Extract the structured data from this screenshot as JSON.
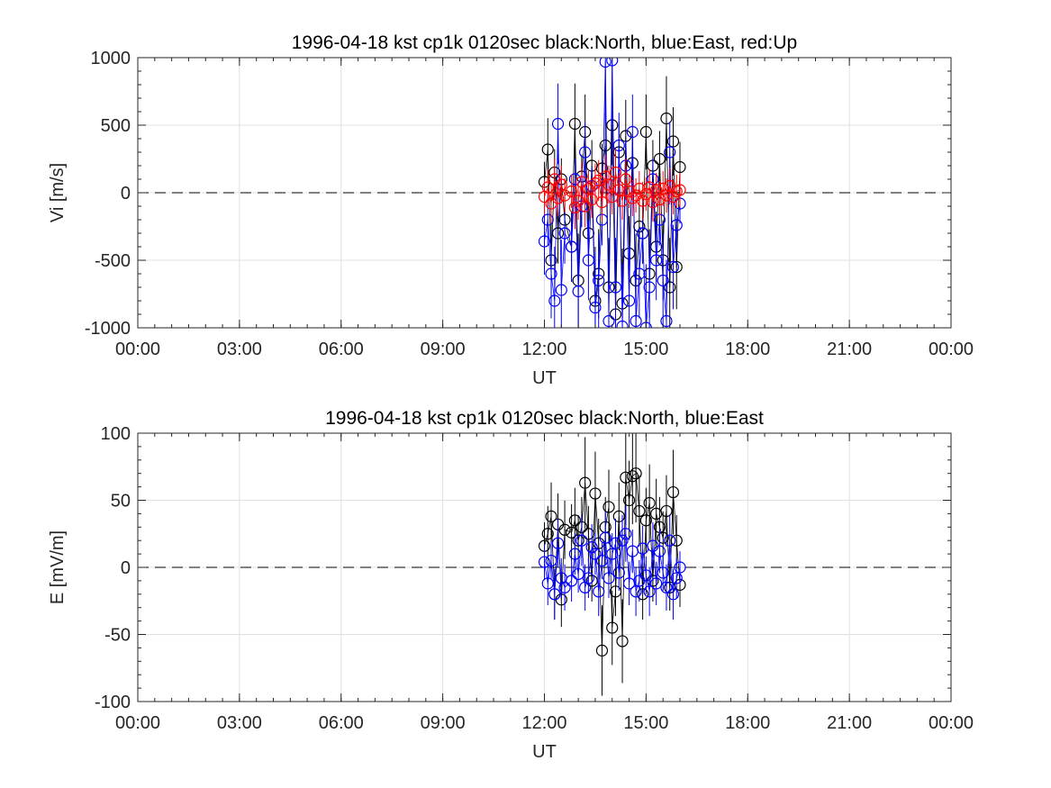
{
  "chart_data": [
    {
      "type": "scatter",
      "title": "1996-04-18 kst cp1k 0120sec black:North, blue:East, red:Up",
      "xlabel": "UT",
      "ylabel": "Vi [m/s]",
      "xlim": [
        0,
        24
      ],
      "ylim": [
        -1000,
        1000
      ],
      "xticks": [
        0,
        3,
        6,
        9,
        12,
        15,
        18,
        21,
        24
      ],
      "xticklabels": [
        "00:00",
        "03:00",
        "06:00",
        "09:00",
        "12:00",
        "15:00",
        "18:00",
        "21:00",
        "00:00"
      ],
      "yticks": [
        -1000,
        -500,
        0,
        500,
        1000
      ],
      "yticklabels": [
        "-1000",
        "-500",
        "0",
        "500",
        "1000"
      ],
      "grid": true,
      "zero_line": "dashed",
      "series": [
        {
          "name": "North",
          "color": "#000000",
          "marker": "circle",
          "errorbars": true,
          "x": [
            12.0,
            12.1,
            12.2,
            12.3,
            12.4,
            12.5,
            12.6,
            12.8,
            12.9,
            13.0,
            13.1,
            13.2,
            13.3,
            13.4,
            13.5,
            13.6,
            13.7,
            13.8,
            13.9,
            14.0,
            14.1,
            14.2,
            14.3,
            14.4,
            14.5,
            14.6,
            14.7,
            14.8,
            14.9,
            15.0,
            15.1,
            15.2,
            15.3,
            15.4,
            15.5,
            15.6,
            15.7,
            15.8,
            15.9,
            16.0
          ],
          "y": [
            80,
            320,
            -500,
            150,
            -300,
            100,
            -200,
            -400,
            510,
            -650,
            120,
            450,
            -300,
            200,
            -800,
            -600,
            180,
            350,
            -700,
            500,
            -900,
            300,
            -820,
            420,
            -450,
            220,
            -650,
            -250,
            -300,
            450,
            -600,
            200,
            -400,
            250,
            -500,
            550,
            -700,
            380,
            -550,
            190
          ]
        },
        {
          "name": "East",
          "color": "#0000ff",
          "marker": "circle",
          "errorbars": true,
          "x": [
            12.0,
            12.1,
            12.2,
            12.3,
            12.4,
            12.5,
            12.6,
            12.8,
            12.9,
            13.0,
            13.1,
            13.2,
            13.3,
            13.4,
            13.5,
            13.6,
            13.7,
            13.8,
            13.9,
            14.0,
            14.1,
            14.2,
            14.3,
            14.4,
            14.5,
            14.6,
            14.7,
            14.8,
            14.9,
            15.0,
            15.1,
            15.2,
            15.3,
            15.4,
            15.5,
            15.6,
            15.7,
            15.8,
            15.9,
            16.0
          ],
          "y": [
            -360,
            -200,
            -600,
            -800,
            510,
            -720,
            -300,
            -400,
            100,
            -730,
            -100,
            300,
            -500,
            50,
            -850,
            -650,
            -200,
            970,
            -950,
            980,
            -700,
            350,
            -990,
            200,
            -800,
            450,
            -950,
            -600,
            -300,
            -1000,
            -700,
            100,
            -500,
            -200,
            -650,
            -950,
            300,
            -550,
            -240,
            -80
          ]
        },
        {
          "name": "Up",
          "color": "#ff0000",
          "marker": "circle",
          "errorbars": true,
          "x": [
            12.0,
            12.1,
            12.2,
            12.3,
            12.4,
            12.5,
            12.6,
            12.8,
            12.9,
            13.0,
            13.1,
            13.2,
            13.3,
            13.4,
            13.5,
            13.6,
            13.7,
            13.8,
            13.9,
            14.0,
            14.1,
            14.2,
            14.3,
            14.4,
            14.5,
            14.6,
            14.7,
            14.8,
            14.9,
            15.0,
            15.1,
            15.2,
            15.3,
            15.4,
            15.5,
            15.6,
            15.7,
            15.8,
            15.9,
            16.0
          ],
          "y": [
            -30,
            40,
            -80,
            100,
            -40,
            60,
            -20,
            10,
            -110,
            -60,
            80,
            -100,
            30,
            -50,
            70,
            90,
            -70,
            120,
            60,
            -30,
            150,
            20,
            -60,
            100,
            10,
            -40,
            -20,
            30,
            -60,
            -10,
            40,
            -70,
            20,
            -50,
            30,
            -20,
            50,
            -30,
            10,
            20
          ]
        }
      ]
    },
    {
      "type": "scatter",
      "title": "1996-04-18 kst cp1k 0120sec black:North, blue:East",
      "xlabel": "UT",
      "ylabel": "E [mV/m]",
      "xlim": [
        0,
        24
      ],
      "ylim": [
        -100,
        100
      ],
      "xticks": [
        0,
        3,
        6,
        9,
        12,
        15,
        18,
        21,
        24
      ],
      "xticklabels": [
        "00:00",
        "03:00",
        "06:00",
        "09:00",
        "12:00",
        "15:00",
        "18:00",
        "21:00",
        "00:00"
      ],
      "yticks": [
        -100,
        -50,
        0,
        50,
        100
      ],
      "yticklabels": [
        "-100",
        "-50",
        "0",
        "50",
        "100"
      ],
      "grid": true,
      "zero_line": "dashed",
      "series": [
        {
          "name": "North",
          "color": "#000000",
          "marker": "circle",
          "errorbars": true,
          "x": [
            12.0,
            12.1,
            12.2,
            12.3,
            12.4,
            12.5,
            12.6,
            12.8,
            12.9,
            13.0,
            13.1,
            13.2,
            13.3,
            13.4,
            13.5,
            13.6,
            13.7,
            13.8,
            13.9,
            14.0,
            14.1,
            14.2,
            14.3,
            14.4,
            14.5,
            14.6,
            14.7,
            14.8,
            14.9,
            15.0,
            15.1,
            15.2,
            15.3,
            15.4,
            15.5,
            15.6,
            15.7,
            15.8,
            15.9,
            16.0
          ],
          "y": [
            16,
            25,
            38,
            -20,
            32,
            -24,
            28,
            26,
            35,
            20,
            30,
            63,
            25,
            -10,
            55,
            18,
            -62,
            30,
            45,
            -45,
            -18,
            38,
            -55,
            67,
            50,
            68,
            70,
            42,
            -20,
            35,
            48,
            -10,
            40,
            30,
            22,
            42,
            -15,
            56,
            20,
            -13
          ]
        },
        {
          "name": "East",
          "color": "#0000ff",
          "marker": "circle",
          "errorbars": true,
          "x": [
            12.0,
            12.1,
            12.2,
            12.3,
            12.4,
            12.5,
            12.6,
            12.8,
            12.9,
            13.0,
            13.1,
            13.2,
            13.3,
            13.4,
            13.5,
            13.6,
            13.7,
            13.8,
            13.9,
            14.0,
            14.1,
            14.2,
            14.3,
            14.4,
            14.5,
            14.6,
            14.7,
            14.8,
            14.9,
            15.0,
            15.1,
            15.2,
            15.3,
            15.4,
            15.5,
            15.6,
            15.7,
            15.8,
            15.9,
            16.0
          ],
          "y": [
            4,
            -12,
            5,
            -20,
            18,
            -8,
            -15,
            -10,
            10,
            -5,
            20,
            -15,
            -8,
            15,
            10,
            -18,
            5,
            22,
            -8,
            10,
            18,
            -4,
            20,
            25,
            -12,
            12,
            -18,
            -10,
            14,
            -6,
            -18,
            16,
            -12,
            12,
            -4,
            -15,
            20,
            -20,
            -8,
            0
          ]
        }
      ]
    }
  ]
}
